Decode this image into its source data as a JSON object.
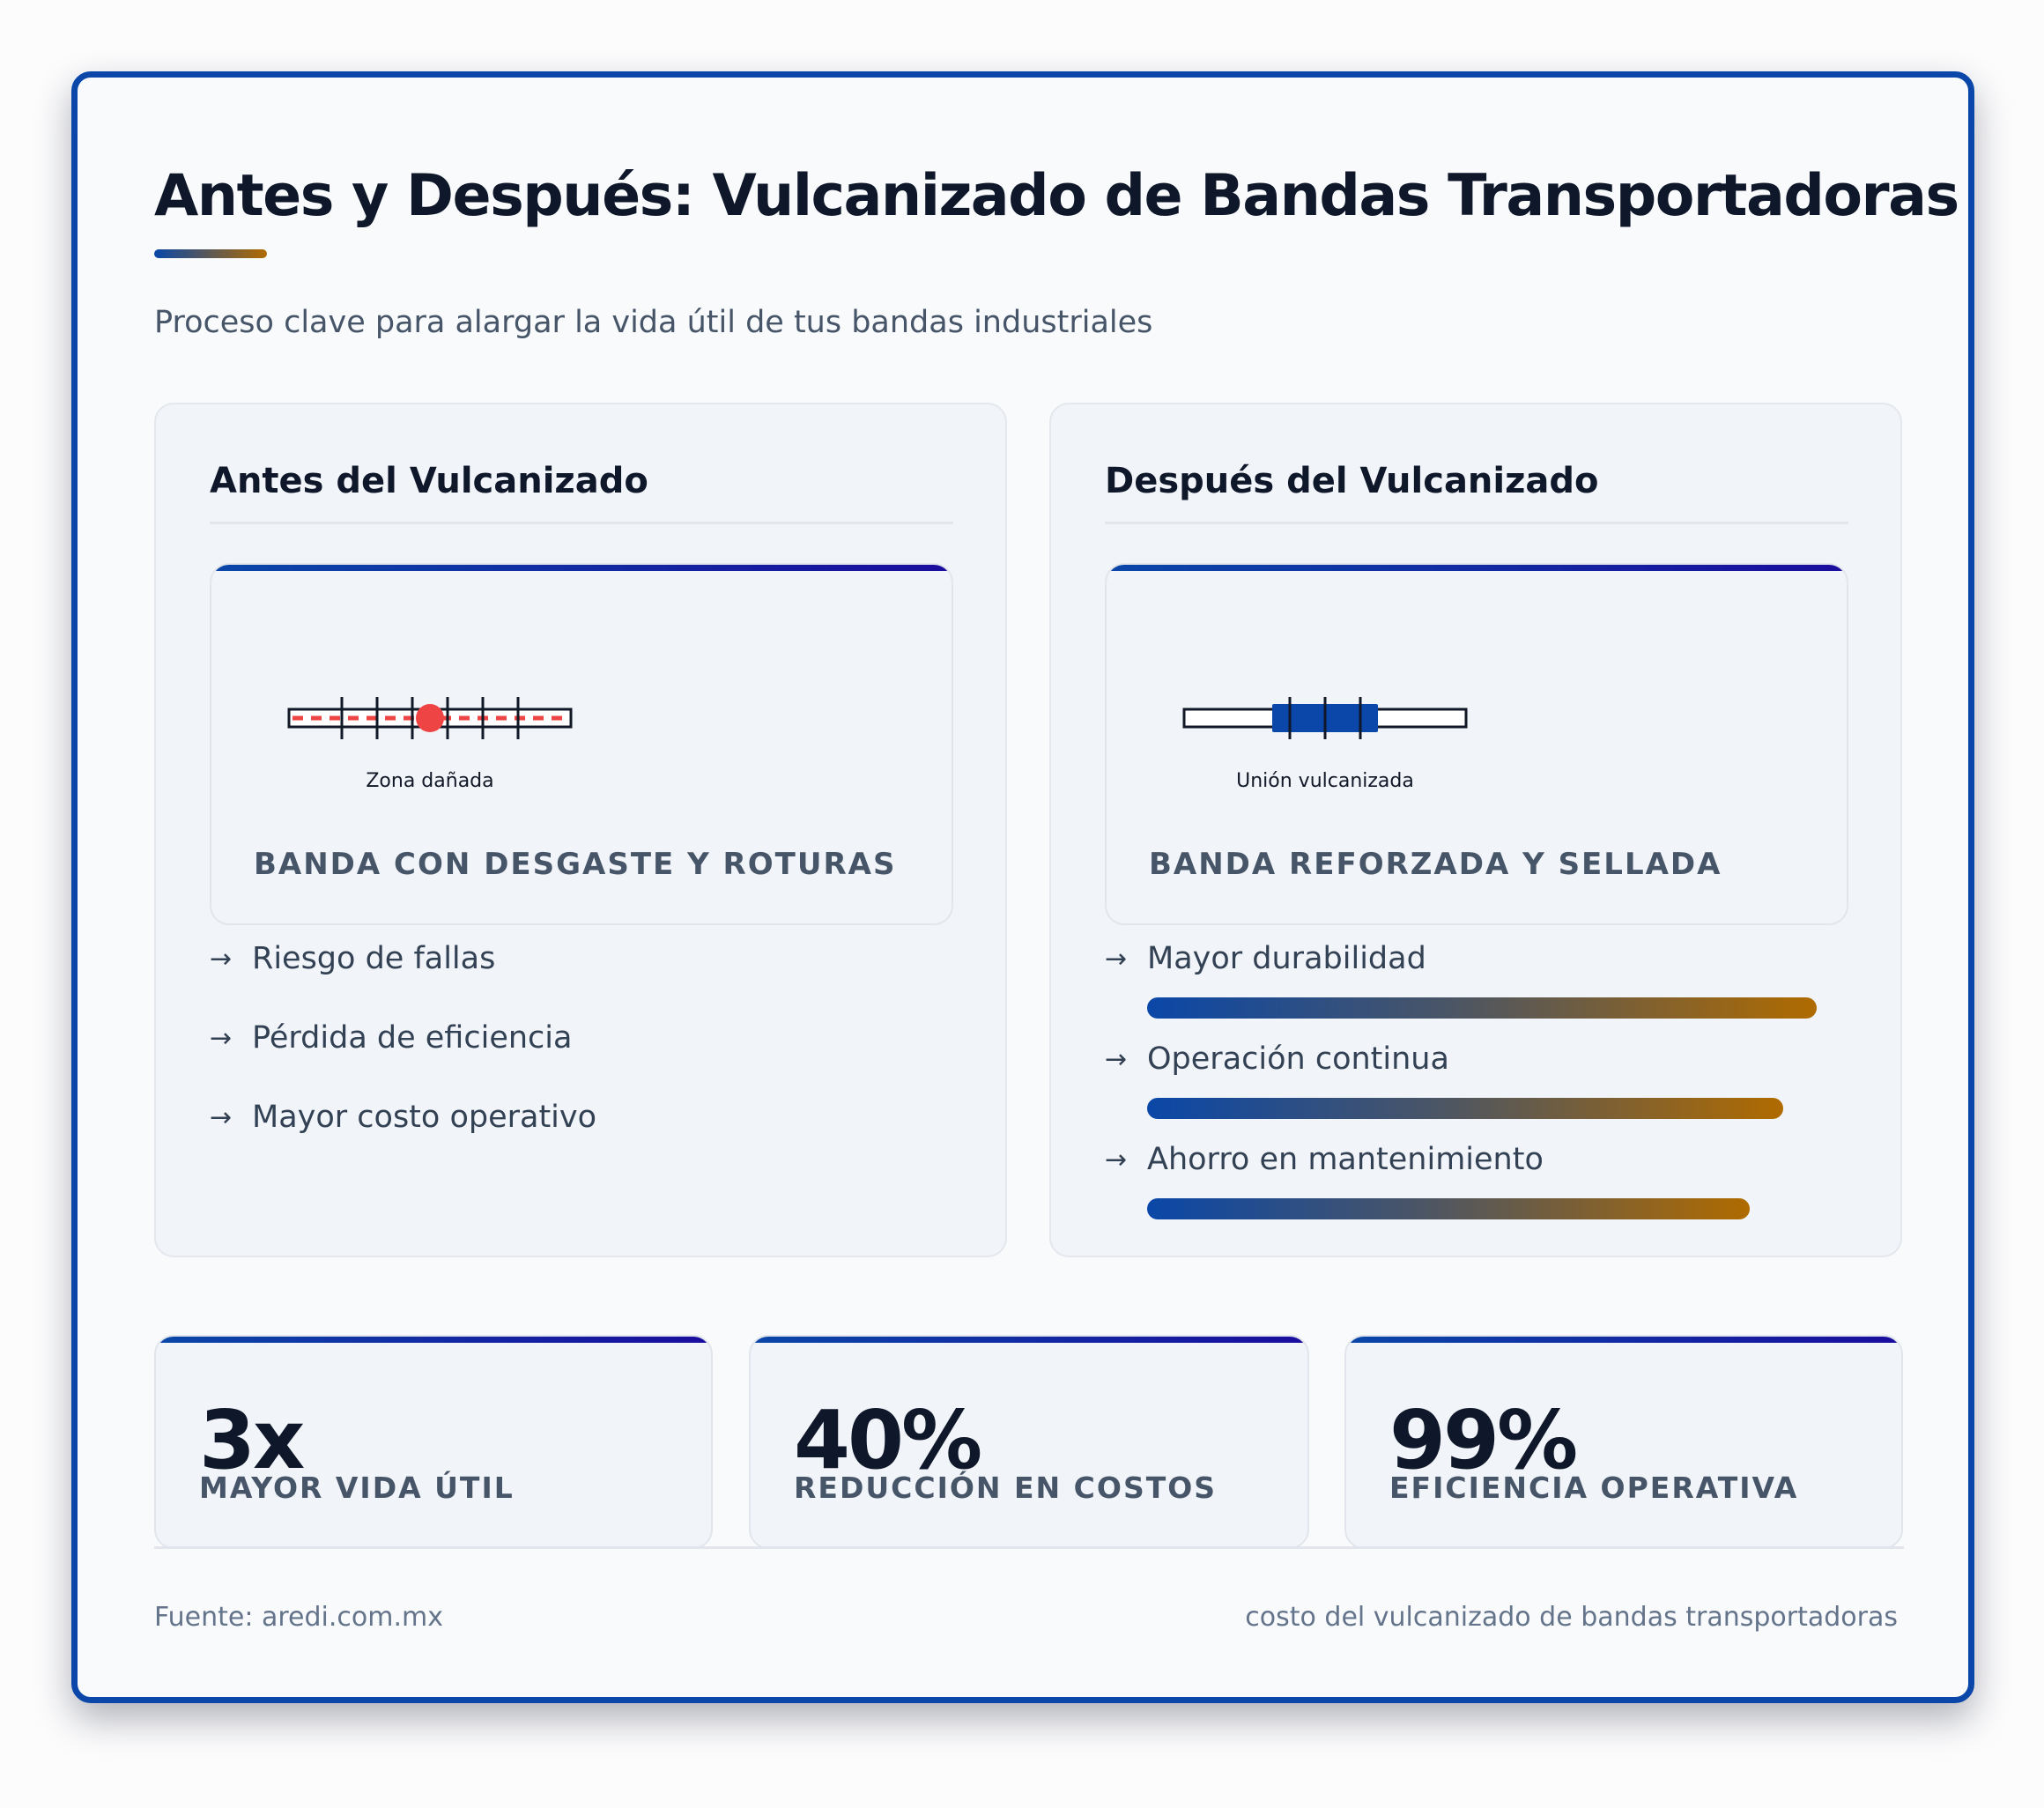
{
  "header": {
    "title": "Antes y Después: Vulcanizado de Bandas Transportadoras",
    "subtitle": "Proceso clave para alargar la vida útil de tus bandas industriales"
  },
  "before": {
    "title": "Antes del Vulcanizado",
    "diagram_caption": "Zona dañada",
    "label": "BANDA CON DESGASTE Y ROTURAS",
    "items": [
      "Riesgo de fallas",
      "Pérdida de eficiencia",
      "Mayor costo operativo"
    ]
  },
  "after": {
    "title": "Después del Vulcanizado",
    "diagram_caption": "Unión vulcanizada",
    "label": "BANDA REFORZADA Y SELLADA",
    "items": [
      {
        "label": "Mayor durabilidad",
        "level": 1.0
      },
      {
        "label": "Operación continua",
        "level": 0.95
      },
      {
        "label": "Ahorro en mantenimiento",
        "level": 0.9
      }
    ]
  },
  "stats": [
    {
      "value": "3x",
      "label": "MAYOR VIDA ÚTIL"
    },
    {
      "value": "40%",
      "label": "REDUCCIÓN EN COSTOS"
    },
    {
      "value": "99%",
      "label": "EFICIENCIA OPERATIVA"
    }
  ],
  "footer": {
    "source": "Fuente: aredi.com.mx",
    "keyword": "costo del vulcanizado de bandas transportadoras"
  },
  "colors": {
    "frame_border": "#0a47a8",
    "accent_blue": "#0a47a8",
    "accent_orange": "#b06b00",
    "damage_red": "#ef4444"
  },
  "icons": [
    "right-arrow-icon"
  ]
}
